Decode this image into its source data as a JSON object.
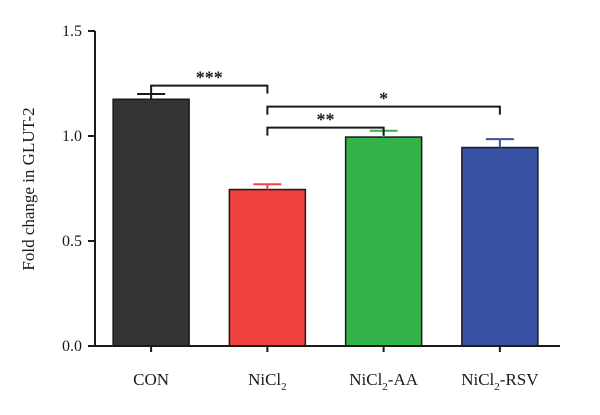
{
  "chart_data": {
    "type": "bar",
    "categories": [
      {
        "main": "CON",
        "sub": "",
        "rest": ""
      },
      {
        "main": "NiCl",
        "sub": "2",
        "rest": ""
      },
      {
        "main": "NiCl",
        "sub": "2",
        "rest": "-AA"
      },
      {
        "main": "NiCl",
        "sub": "2",
        "rest": "-RSV"
      }
    ],
    "values": [
      1.175,
      0.745,
      0.995,
      0.945
    ],
    "errors": [
      0.025,
      0.025,
      0.03,
      0.04
    ],
    "colors": [
      "#333333",
      "#ef4040",
      "#34b34a",
      "#3a52a3"
    ],
    "ylabel": "Fold change in GLUT-2",
    "ylim": [
      0,
      1.5
    ],
    "yticks": [
      "0.0",
      "0.5",
      "1.0",
      "1.5"
    ],
    "significance": [
      {
        "from": 0,
        "to": 1,
        "y": 1.24,
        "label": "***"
      },
      {
        "from": 1,
        "to": 2,
        "y": 1.04,
        "label": "**"
      },
      {
        "from": 1,
        "to": 3,
        "y": 1.14,
        "label": "*"
      }
    ]
  }
}
